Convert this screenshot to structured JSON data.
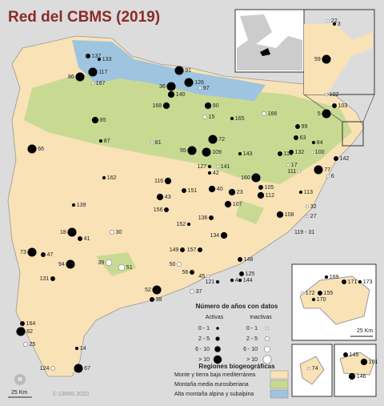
{
  "title": "Red del CBMS (2019)",
  "legend": {
    "years_title": "Número de años con datos",
    "active": "Activas",
    "inactive": "Inactivas",
    "classes": [
      "0 - 1",
      "2 - 5",
      "6 - 10",
      "> 10"
    ],
    "regions_title": "Regiones biogeográficas",
    "regions": [
      {
        "label": "Monte y tierra baja mediterránea",
        "color": "#f8e2b6"
      },
      {
        "label": "Montaña media eurosiberiana",
        "color": "#c8da92"
      },
      {
        "label": "Alta montaña alpina y subalpina",
        "color": "#9fc4df"
      }
    ]
  },
  "scale_main": "25 Km",
  "scale_islands": "25 Km",
  "credit": "© CBMS 2020",
  "north": "N",
  "sites": [
    {
      "label": "137",
      "years": "2 - 5",
      "active": true
    },
    {
      "label": "133",
      "years": "0 - 1",
      "active": true
    },
    {
      "label": "117",
      "years": "> 10",
      "active": true
    },
    {
      "label": "86",
      "years": "> 10",
      "active": true
    },
    {
      "label": "167",
      "years": "0 - 1",
      "active": false
    },
    {
      "label": "91",
      "years": "> 10",
      "active": true
    },
    {
      "label": "126",
      "years": "> 10",
      "active": true
    },
    {
      "label": "97",
      "years": "0 - 1",
      "active": false
    },
    {
      "label": "36",
      "years": "> 10",
      "active": true
    },
    {
      "label": "140",
      "years": "6 - 10",
      "active": true
    },
    {
      "label": "168",
      "years": "6 - 10",
      "active": true
    },
    {
      "label": "90",
      "years": "6 - 10",
      "active": true
    },
    {
      "label": "15",
      "years": "2 - 5",
      "active": false
    },
    {
      "label": "165",
      "years": "0 - 1",
      "active": true
    },
    {
      "label": "166",
      "years": "2 - 5",
      "active": false
    },
    {
      "label": "85",
      "years": "6 - 10",
      "active": true
    },
    {
      "label": "102",
      "years": "0 - 1",
      "active": false
    },
    {
      "label": "5",
      "years": "> 10",
      "active": true
    },
    {
      "label": "103",
      "years": "2 - 5",
      "active": true
    },
    {
      "label": "99",
      "years": "2 - 5",
      "active": true
    },
    {
      "label": "87",
      "years": "0 - 1",
      "active": true
    },
    {
      "label": "66",
      "years": "> 10",
      "active": true
    },
    {
      "label": "81",
      "years": "0 - 1",
      "active": false
    },
    {
      "label": "72",
      "years": "> 10",
      "active": true
    },
    {
      "label": "55",
      "years": "> 10",
      "active": true
    },
    {
      "label": "109",
      "years": "> 10",
      "active": true
    },
    {
      "label": "63",
      "years": "2 - 5",
      "active": true
    },
    {
      "label": "84",
      "years": "0 - 1",
      "active": true
    },
    {
      "label": "132",
      "years": "2 - 5",
      "active": true
    },
    {
      "label": "100",
      "years": "0 - 1",
      "active": false
    },
    {
      "label": "143",
      "years": "0 - 1",
      "active": true
    },
    {
      "label": "115",
      "years": "2 - 5",
      "active": true
    },
    {
      "label": "142",
      "years": "2 - 5",
      "active": true
    },
    {
      "label": "127",
      "years": "0 - 1",
      "active": true
    },
    {
      "label": "141",
      "years": "0 - 1",
      "active": false
    },
    {
      "label": "42",
      "years": "0 - 1",
      "active": true
    },
    {
      "label": "17",
      "years": "0 - 1",
      "active": false
    },
    {
      "label": "77",
      "years": "> 10",
      "active": true
    },
    {
      "label": "111",
      "years": "0 - 1",
      "active": false
    },
    {
      "label": "160",
      "years": "> 10",
      "active": true
    },
    {
      "label": "162",
      "years": "0 - 1",
      "active": true
    },
    {
      "label": "116",
      "years": "6 - 10",
      "active": true
    },
    {
      "label": "6",
      "years": "0 - 1",
      "active": false
    },
    {
      "label": "40",
      "years": "6 - 10",
      "active": true
    },
    {
      "label": "23",
      "years": "6 - 10",
      "active": true
    },
    {
      "label": "105",
      "years": "2 - 5",
      "active": true
    },
    {
      "label": "112",
      "years": "6 - 10",
      "active": true
    },
    {
      "label": "113",
      "years": "0 - 1",
      "active": true
    },
    {
      "label": "151",
      "years": "2 - 5",
      "active": true
    },
    {
      "label": "43",
      "years": "6 - 10",
      "active": true
    },
    {
      "label": "107",
      "years": "6 - 10",
      "active": true
    },
    {
      "label": "139",
      "years": "0 - 1",
      "active": true
    },
    {
      "label": "156",
      "years": "2 - 5",
      "active": true
    },
    {
      "label": "108",
      "years": "6 - 10",
      "active": true
    },
    {
      "label": "32",
      "years": "0 - 1",
      "active": false
    },
    {
      "label": "27",
      "years": "0 - 1",
      "active": false
    },
    {
      "label": "152",
      "years": "0 - 1",
      "active": true
    },
    {
      "label": "136",
      "years": "2 - 5",
      "active": true
    },
    {
      "label": "18",
      "years": "> 10",
      "active": true
    },
    {
      "label": "41",
      "years": "2 - 5",
      "active": true
    },
    {
      "label": "30",
      "years": "2 - 5",
      "active": false
    },
    {
      "label": "134",
      "years": "6 - 10",
      "active": true
    },
    {
      "label": "73",
      "years": "> 10",
      "active": true
    },
    {
      "label": "47",
      "years": "2 - 5",
      "active": true
    },
    {
      "label": "149",
      "years": "2 - 5",
      "active": true
    },
    {
      "label": "157",
      "years": "2 - 5",
      "active": true
    },
    {
      "label": "94",
      "years": "> 10",
      "active": true
    },
    {
      "label": "39",
      "years": "6 - 10",
      "active": false
    },
    {
      "label": "51",
      "years": "6 - 10",
      "active": false
    },
    {
      "label": "50",
      "years": "2 - 5",
      "active": false
    },
    {
      "label": "148",
      "years": "2 - 5",
      "active": true
    },
    {
      "label": "56",
      "years": "2 - 5",
      "active": true
    },
    {
      "label": "125",
      "years": "2 - 5",
      "active": true
    },
    {
      "label": "144",
      "years": "0 - 1",
      "active": true
    },
    {
      "label": "131",
      "years": "2 - 5",
      "active": true
    },
    {
      "label": "45",
      "years": "0 - 1",
      "active": false
    },
    {
      "label": "121",
      "years": "0 - 1",
      "active": true
    },
    {
      "label": "4",
      "years": "0 - 1",
      "active": true
    },
    {
      "label": "37",
      "years": "2 - 5",
      "active": false
    },
    {
      "label": "52",
      "years": "> 10",
      "active": true
    },
    {
      "label": "38",
      "years": "2 - 5",
      "active": true
    },
    {
      "label": "164",
      "years": "2 - 5",
      "active": true
    },
    {
      "label": "82",
      "years": "> 10",
      "active": true
    },
    {
      "label": "25",
      "years": "2 - 5",
      "active": false
    },
    {
      "label": "124",
      "years": "2 - 5",
      "active": false
    },
    {
      "label": "14",
      "years": "0 - 1",
      "active": true
    },
    {
      "label": "67",
      "years": "> 10",
      "active": true
    },
    {
      "label": "22",
      "years": "0 - 1",
      "active": false
    },
    {
      "label": "3",
      "years": "0 - 1",
      "active": true
    },
    {
      "label": "59",
      "years": "> 10",
      "active": true
    },
    {
      "label": "169",
      "years": "0 - 1",
      "active": true
    },
    {
      "label": "171",
      "years": "2 - 5",
      "active": true
    },
    {
      "label": "173",
      "years": "0 - 1",
      "active": true
    },
    {
      "label": "172",
      "years": "0 - 1",
      "active": false
    },
    {
      "label": "155",
      "years": "2 - 5",
      "active": true
    },
    {
      "label": "170",
      "years": "0 - 1",
      "active": true
    },
    {
      "label": "74",
      "years": "0 - 1",
      "active": false
    },
    {
      "label": "145",
      "years": "2 - 5",
      "active": true
    },
    {
      "label": "101",
      "years": "6 - 10",
      "active": true
    },
    {
      "label": "146",
      "years": "6 - 10",
      "active": true
    }
  ],
  "extra_label": "119 - 31"
}
